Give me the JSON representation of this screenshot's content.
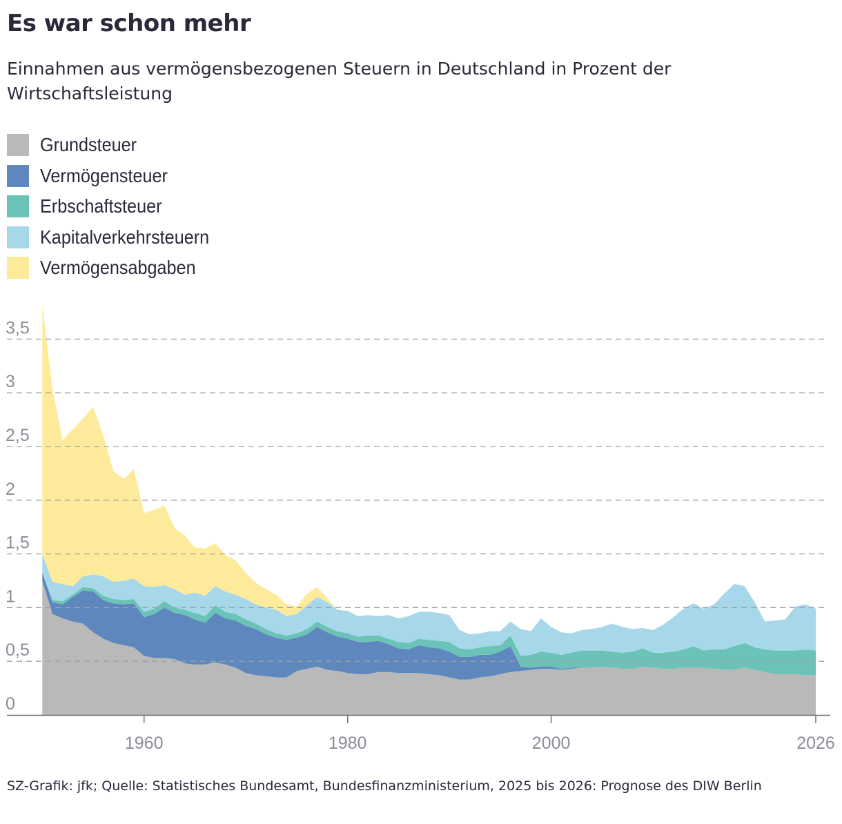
{
  "header": {
    "title": "Es war schon mehr",
    "subtitle": "Einnahmen aus vermögensbezogenen Steuern in Deutschland in Prozent der Wirtschaftsleistung"
  },
  "legend": {
    "items": [
      {
        "label": "Grundsteuer",
        "color": "#b9b9b9"
      },
      {
        "label": "Vermögensteuer",
        "color": "#5d87bd"
      },
      {
        "label": "Erbschaftsteuer",
        "color": "#6bc3b8"
      },
      {
        "label": "Kapitalverkehrsteuern",
        "color": "#a6d8ea"
      },
      {
        "label": "Vermögensabgaben",
        "color": "#fdeb9b"
      }
    ]
  },
  "footer": {
    "source": "SZ-Grafik: jfk; Quelle: Statistisches Bundesamt, Bundesfinanzministerium, 2025 bis 2026: Prognose des DIW Berlin"
  },
  "chart_data": {
    "type": "area",
    "stacked": true,
    "title": "Es war schon mehr",
    "subtitle": "Einnahmen aus vermögensbezogenen Steuern in Deutschland in Prozent der Wirtschaftsleistung",
    "xlabel": "",
    "ylabel": "",
    "xlim": [
      1950,
      2027
    ],
    "ylim": [
      0,
      3.8
    ],
    "x_ticks": [
      1960,
      1980,
      2000,
      2026
    ],
    "x_tick_labels": [
      "1960",
      "1980",
      "2000",
      "2026"
    ],
    "y_ticks": [
      0,
      0.5,
      1,
      1.5,
      2,
      2.5,
      3,
      3.5
    ],
    "y_tick_labels": [
      "0",
      "0,5",
      "1",
      "1,5",
      "2",
      "2,5",
      "3",
      "3,5"
    ],
    "grid": "horizontal dashed",
    "legend_position": "top-left",
    "x": [
      1950,
      1951,
      1952,
      1953,
      1954,
      1955,
      1956,
      1957,
      1958,
      1959,
      1960,
      1961,
      1962,
      1963,
      1964,
      1965,
      1966,
      1967,
      1968,
      1969,
      1970,
      1971,
      1972,
      1973,
      1974,
      1975,
      1976,
      1977,
      1978,
      1979,
      1980,
      1981,
      1982,
      1983,
      1984,
      1985,
      1986,
      1987,
      1988,
      1989,
      1990,
      1991,
      1992,
      1993,
      1994,
      1995,
      1996,
      1997,
      1998,
      1999,
      2000,
      2001,
      2002,
      2003,
      2004,
      2005,
      2006,
      2007,
      2008,
      2009,
      2010,
      2011,
      2012,
      2013,
      2014,
      2015,
      2016,
      2017,
      2018,
      2019,
      2020,
      2021,
      2022,
      2023,
      2024,
      2025,
      2026
    ],
    "series": [
      {
        "name": "Grundsteuer",
        "color": "#b9b9b9",
        "values": [
          1.25,
          0.94,
          0.9,
          0.87,
          0.85,
          0.77,
          0.71,
          0.67,
          0.65,
          0.63,
          0.55,
          0.53,
          0.53,
          0.52,
          0.48,
          0.47,
          0.47,
          0.49,
          0.47,
          0.44,
          0.39,
          0.37,
          0.36,
          0.35,
          0.35,
          0.41,
          0.43,
          0.45,
          0.42,
          0.41,
          0.39,
          0.38,
          0.38,
          0.4,
          0.4,
          0.39,
          0.39,
          0.39,
          0.38,
          0.37,
          0.35,
          0.33,
          0.33,
          0.35,
          0.36,
          0.38,
          0.4,
          0.41,
          0.42,
          0.43,
          0.43,
          0.42,
          0.43,
          0.44,
          0.44,
          0.45,
          0.44,
          0.43,
          0.43,
          0.45,
          0.44,
          0.43,
          0.43,
          0.44,
          0.44,
          0.44,
          0.43,
          0.42,
          0.42,
          0.44,
          0.42,
          0.4,
          0.38,
          0.38,
          0.38,
          0.37,
          0.37
        ]
      },
      {
        "name": "Vermögensteuer",
        "color": "#5d87bd",
        "values": [
          0.07,
          0.11,
          0.13,
          0.23,
          0.31,
          0.38,
          0.36,
          0.37,
          0.38,
          0.41,
          0.36,
          0.41,
          0.47,
          0.43,
          0.45,
          0.42,
          0.39,
          0.46,
          0.43,
          0.44,
          0.44,
          0.43,
          0.39,
          0.37,
          0.35,
          0.31,
          0.32,
          0.37,
          0.35,
          0.32,
          0.32,
          0.3,
          0.3,
          0.29,
          0.26,
          0.23,
          0.22,
          0.26,
          0.25,
          0.25,
          0.24,
          0.21,
          0.21,
          0.21,
          0.2,
          0.21,
          0.24,
          0.04,
          0.02,
          0.02,
          0.02,
          0.01,
          0.01,
          0.0,
          0.0,
          0.0,
          0.0,
          0.0,
          0.0,
          0.0,
          0.0,
          0.0,
          0.0,
          0.0,
          0.0,
          0.0,
          0.0,
          0.0,
          0.0,
          0.0,
          0.0,
          0.0,
          0.0,
          0.0,
          0.0,
          0.0,
          0.0
        ]
      },
      {
        "name": "Erbschaftsteuer",
        "color": "#6bc3b8",
        "values": [
          0.01,
          0.02,
          0.03,
          0.02,
          0.03,
          0.03,
          0.04,
          0.04,
          0.04,
          0.04,
          0.05,
          0.05,
          0.06,
          0.05,
          0.05,
          0.06,
          0.06,
          0.07,
          0.06,
          0.06,
          0.06,
          0.05,
          0.05,
          0.04,
          0.04,
          0.04,
          0.05,
          0.05,
          0.05,
          0.05,
          0.05,
          0.05,
          0.06,
          0.05,
          0.05,
          0.06,
          0.06,
          0.06,
          0.07,
          0.07,
          0.09,
          0.08,
          0.07,
          0.07,
          0.08,
          0.06,
          0.1,
          0.1,
          0.12,
          0.14,
          0.13,
          0.13,
          0.14,
          0.16,
          0.16,
          0.15,
          0.15,
          0.15,
          0.16,
          0.17,
          0.14,
          0.15,
          0.16,
          0.17,
          0.2,
          0.16,
          0.18,
          0.19,
          0.22,
          0.23,
          0.21,
          0.21,
          0.22,
          0.22,
          0.22,
          0.24,
          0.23
        ]
      },
      {
        "name": "Kapitalverkehrsteuern",
        "color": "#a6d8ea",
        "values": [
          0.17,
          0.17,
          0.16,
          0.08,
          0.1,
          0.13,
          0.18,
          0.16,
          0.18,
          0.19,
          0.24,
          0.2,
          0.15,
          0.17,
          0.14,
          0.19,
          0.19,
          0.18,
          0.19,
          0.18,
          0.19,
          0.18,
          0.2,
          0.22,
          0.18,
          0.18,
          0.22,
          0.23,
          0.23,
          0.2,
          0.21,
          0.19,
          0.19,
          0.18,
          0.22,
          0.22,
          0.25,
          0.25,
          0.26,
          0.26,
          0.25,
          0.17,
          0.14,
          0.13,
          0.14,
          0.13,
          0.13,
          0.25,
          0.22,
          0.31,
          0.24,
          0.21,
          0.18,
          0.19,
          0.2,
          0.22,
          0.26,
          0.24,
          0.21,
          0.19,
          0.21,
          0.26,
          0.32,
          0.38,
          0.4,
          0.39,
          0.42,
          0.52,
          0.58,
          0.53,
          0.42,
          0.26,
          0.28,
          0.29,
          0.41,
          0.42,
          0.39
        ]
      },
      {
        "name": "Vermögensabgaben",
        "color": "#fdeb9b",
        "values": [
          2.32,
          1.8,
          1.34,
          1.46,
          1.47,
          1.56,
          1.31,
          1.03,
          0.95,
          1.02,
          0.68,
          0.72,
          0.74,
          0.57,
          0.55,
          0.42,
          0.44,
          0.4,
          0.34,
          0.32,
          0.24,
          0.2,
          0.17,
          0.14,
          0.11,
          0.07,
          0.11,
          0.09,
          0.04,
          0.0,
          0.0,
          0.0,
          0.0,
          0.0,
          0.0,
          0.0,
          0.0,
          0.0,
          0.0,
          0.0,
          0.0,
          0.0,
          0.0,
          0.0,
          0.0,
          0.0,
          0.0,
          0.0,
          0.0,
          0.0,
          0.0,
          0.0,
          0.0,
          0.0,
          0.0,
          0.0,
          0.0,
          0.0,
          0.0,
          0.0,
          0.0,
          0.0,
          0.0,
          0.0,
          0.0,
          0.0,
          0.0,
          0.0,
          0.0,
          0.0,
          0.0,
          0.0,
          0.0,
          0.0,
          0.0,
          0.0,
          0.0
        ]
      }
    ]
  }
}
